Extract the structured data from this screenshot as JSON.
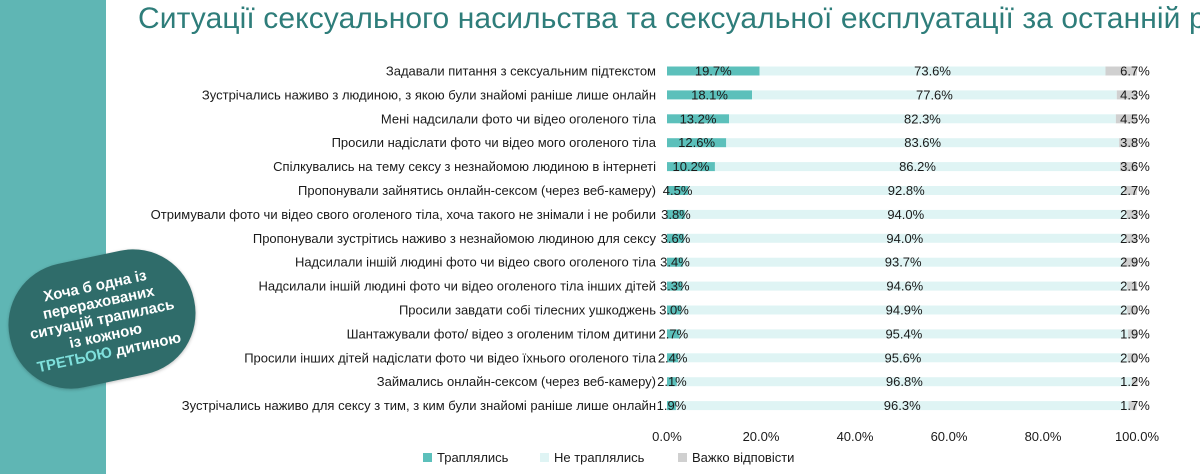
{
  "title": "Ситуації сексуального насильства та сексуальної експлуатації за останній рік",
  "callout": {
    "text_before": "Хоча б одна із перерахованих ситуацій трапилась із кожною ",
    "highlight": "ТРЕТЬОЮ",
    "text_after": " дитиною"
  },
  "colors": {
    "band": "#5fb6b4",
    "happened": "#5cc0bb",
    "not_happened": "#dff4f4",
    "hard_to_answer": "#d0d0d0",
    "callout_bg": "#2f6c6a",
    "highlight": "#7fe0dc"
  },
  "chart_data": {
    "type": "bar",
    "orientation": "horizontal",
    "stacked": true,
    "percent": true,
    "title": "Ситуації сексуального насильства та сексуальної експлуатації за останній рік",
    "categories": [
      "Задавали питання з сексуальним підтекстом",
      "Зустрічались  наживо з людиною, з якою були знайомі раніше лише онлайн",
      "Мені надсилали фото чи відео оголеного тіла",
      "Просили надіслати фото чи відео мого оголеного тіла",
      "Спілкувались на тему сексу з незнайомою людиною в інтернеті",
      "Пропонували зайнятись онлайн-сексом (через веб-камеру)",
      "Отримували фото чи відео свого оголеного тіла, хоча такого не знімали і не робили",
      "Пропонували зустрітись наживо з незнайомою людиною для сексу",
      "Надсилали іншій людині фото чи відео свого оголеного тіла",
      "Надсилали іншій людині фото чи відео оголеного тіла інших дітей",
      "Просили завдати собі тілесних ушкоджень",
      "Шантажували фото/ відео з оголеним тілом дитини",
      "Просили інших дітей надіслати фото чи відео їхнього оголеного тіла",
      "Займались онлайн-сексом (через веб-камеру)",
      "Зустрічались наживо для сексу з тим, з ким були знайомі раніше лише онлайн"
    ],
    "series": [
      {
        "name": "Траплялись",
        "values": [
          19.7,
          18.1,
          13.2,
          12.6,
          10.2,
          4.5,
          3.8,
          3.6,
          3.4,
          3.3,
          3.0,
          2.7,
          2.4,
          2.1,
          1.9
        ],
        "labels": [
          "19.7%",
          "18.1%",
          "13.2%",
          "12.6%",
          "10.2%",
          "4.5%",
          "3.8%",
          "3.6%",
          "3.4%",
          "3.3%",
          "3.0%",
          "2.7%",
          "2.4%",
          "2.1%",
          "1.9%"
        ]
      },
      {
        "name": "Не траплялись",
        "values": [
          73.6,
          77.6,
          82.3,
          83.6,
          86.2,
          92.8,
          94.0,
          94.0,
          93.7,
          94.6,
          94.9,
          95.4,
          95.6,
          96.8,
          96.3
        ],
        "labels": [
          "73.6%",
          "77.6%",
          "82.3%",
          "83.6%",
          "86.2%",
          "92.8%",
          "94.0%",
          "94.0%",
          "93.7%",
          "94.6%",
          "94.9%",
          "95.4%",
          "95.6%",
          "96.8%",
          "96.3%"
        ]
      },
      {
        "name": "Важко відповісти",
        "values": [
          6.7,
          4.3,
          4.5,
          3.8,
          3.6,
          2.7,
          2.3,
          2.3,
          2.9,
          2.1,
          2.0,
          1.9,
          2.0,
          1.2,
          1.7
        ],
        "labels": [
          "6.7%",
          "4.3%",
          "4.5%",
          "3.8%",
          "3.6%",
          "2.7%",
          "2.3%",
          "2.3%",
          "2.9%",
          "2.1%",
          "2.0%",
          "1.9%",
          "2.0%",
          "1.2%",
          "1.7%"
        ]
      }
    ],
    "xlim": [
      0,
      100
    ],
    "xticks": [
      "0.0%",
      "20.0%",
      "40.0%",
      "60.0%",
      "80.0%",
      "100.0%"
    ],
    "grid": false,
    "legend": "bottom"
  }
}
